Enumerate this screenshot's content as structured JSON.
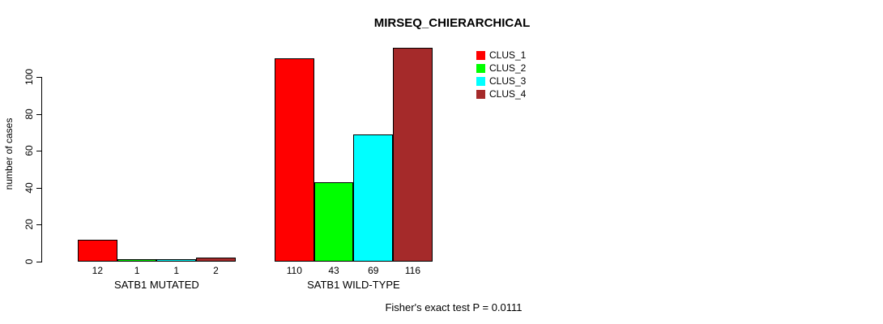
{
  "chart_data": {
    "type": "bar",
    "title": "MIRSEQ_CHIERARCHICAL",
    "ylabel": "number of cases",
    "xlabel": "",
    "ylim": [
      0,
      100
    ],
    "yticks": [
      0,
      20,
      40,
      60,
      80,
      100
    ],
    "grid": false,
    "legend_position": "top-right",
    "categories": [
      "SATB1 MUTATED",
      "SATB1 WILD-TYPE"
    ],
    "series": [
      {
        "name": "CLUS_1",
        "color": "#ff0000",
        "values": [
          12,
          110
        ]
      },
      {
        "name": "CLUS_2",
        "color": "#00ff00",
        "values": [
          1,
          43
        ]
      },
      {
        "name": "CLUS_3",
        "color": "#00ffff",
        "values": [
          1,
          69
        ]
      },
      {
        "name": "CLUS_4",
        "color": "#a52a2a",
        "values": [
          2,
          116
        ]
      }
    ]
  },
  "footnote": "Fisher's exact test P = 0.0111"
}
